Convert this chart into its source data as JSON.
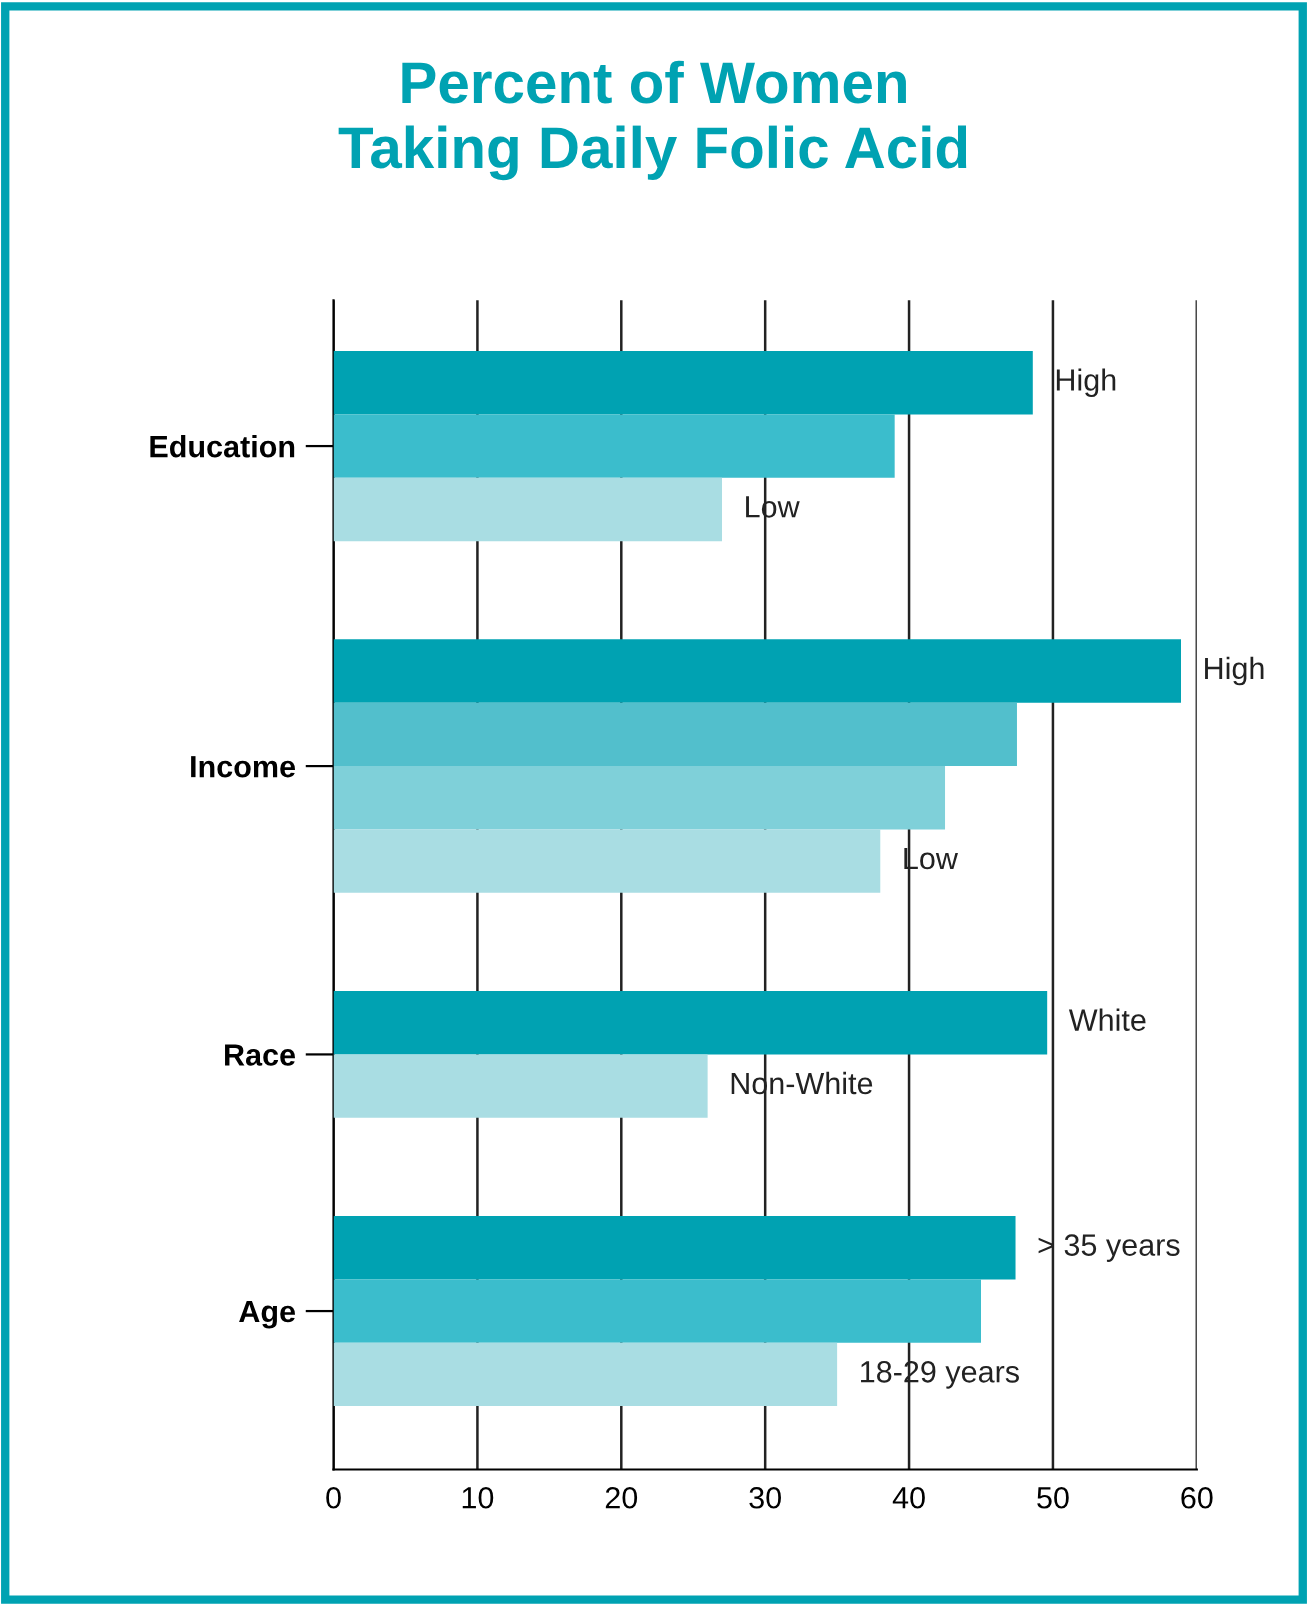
{
  "chart_data": {
    "type": "bar",
    "orientation": "horizontal",
    "title": "Percent of Women\nTaking Daily Folic Acid",
    "categories": [
      "Education",
      "Income",
      "Race",
      "Age"
    ],
    "series": [
      {
        "colors": [
          "#00a2b2",
          "#00a2b2",
          "#00a2b2",
          "#00a2b2"
        ],
        "values": [
          48.6,
          58.9,
          49.6,
          47.4
        ],
        "value_labels": [
          "High",
          "High",
          "White",
          "> 35 years"
        ]
      },
      {
        "colors": [
          "#3bbdcc",
          "#52bfcc",
          "#a9dde3",
          "#3bbdcc"
        ],
        "values": [
          39.0,
          47.5,
          26.0,
          45.0
        ],
        "value_labels": [
          null,
          null,
          "Non-White",
          null
        ]
      },
      {
        "colors": [
          "#a9dde3",
          "#7fd0d9",
          null,
          "#a9dde3"
        ],
        "values": [
          27.0,
          42.5,
          null,
          35.0
        ],
        "value_labels": [
          "Low",
          null,
          null,
          "18-29 years"
        ]
      },
      {
        "colors": [
          null,
          "#a9dde3",
          null,
          null
        ],
        "values": [
          null,
          38.0,
          null,
          null
        ],
        "value_labels": [
          null,
          "Low",
          null,
          null
        ]
      }
    ],
    "xlim": [
      0,
      60
    ],
    "xticks": [
      0,
      10,
      20,
      30,
      40,
      50,
      60
    ],
    "grid": "x"
  }
}
